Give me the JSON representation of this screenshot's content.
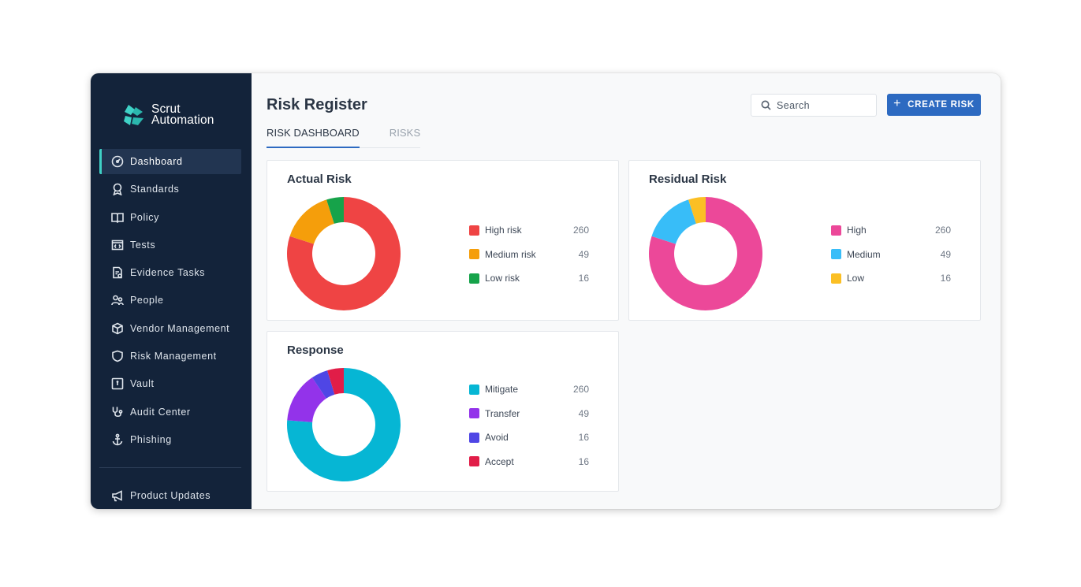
{
  "brand": {
    "line1": "Scrut",
    "line2": "Automation"
  },
  "sidebar": {
    "items": [
      {
        "label": "Dashboard",
        "icon": "dashboard-icon"
      },
      {
        "label": "Standards",
        "icon": "award-icon"
      },
      {
        "label": "Policy",
        "icon": "book-icon"
      },
      {
        "label": "Tests",
        "icon": "code-window-icon"
      },
      {
        "label": "Evidence Tasks",
        "icon": "document-task-icon"
      },
      {
        "label": "People",
        "icon": "people-icon"
      },
      {
        "label": "Vendor Management",
        "icon": "cube-icon"
      },
      {
        "label": "Risk Management",
        "icon": "shield-icon"
      },
      {
        "label": "Vault",
        "icon": "vault-icon"
      },
      {
        "label": "Audit Center",
        "icon": "stethoscope-icon"
      },
      {
        "label": "Phishing",
        "icon": "anchor-icon"
      }
    ],
    "bottom": {
      "label": "Product Updates",
      "icon": "megaphone-icon"
    }
  },
  "header": {
    "title": "Risk Register",
    "search_placeholder": "Search",
    "create_label": "CREATE RISK"
  },
  "tabs": [
    {
      "label": "RISK DASHBOARD",
      "active": true
    },
    {
      "label": "RISKS",
      "active": false
    }
  ],
  "cards": {
    "actual": {
      "title": "Actual Risk",
      "items": [
        {
          "label": "High risk",
          "value": "260",
          "color": "#ef4444"
        },
        {
          "label": "Medium risk",
          "value": "49",
          "color": "#f59e0b"
        },
        {
          "label": "Low risk",
          "value": "16",
          "color": "#16a34a"
        }
      ]
    },
    "residual": {
      "title": "Residual Risk",
      "items": [
        {
          "label": "High",
          "value": "260",
          "color": "#ec4899"
        },
        {
          "label": "Medium",
          "value": "49",
          "color": "#38bdf8"
        },
        {
          "label": "Low",
          "value": "16",
          "color": "#fbbf24"
        }
      ]
    },
    "response": {
      "title": "Response",
      "items": [
        {
          "label": "Mitigate",
          "value": "260",
          "color": "#06b6d4"
        },
        {
          "label": "Transfer",
          "value": "49",
          "color": "#9333ea"
        },
        {
          "label": "Avoid",
          "value": "16",
          "color": "#4f46e5"
        },
        {
          "label": "Accept",
          "value": "16",
          "color": "#e11d48"
        }
      ]
    }
  },
  "chart_data": [
    {
      "type": "pie",
      "title": "Actual Risk",
      "categories": [
        "High risk",
        "Medium risk",
        "Low risk"
      ],
      "values": [
        260,
        49,
        16
      ]
    },
    {
      "type": "pie",
      "title": "Residual Risk",
      "categories": [
        "High",
        "Medium",
        "Low"
      ],
      "values": [
        260,
        49,
        16
      ]
    },
    {
      "type": "pie",
      "title": "Response",
      "categories": [
        "Mitigate",
        "Transfer",
        "Avoid",
        "Accept"
      ],
      "values": [
        260,
        49,
        16,
        16
      ]
    }
  ]
}
